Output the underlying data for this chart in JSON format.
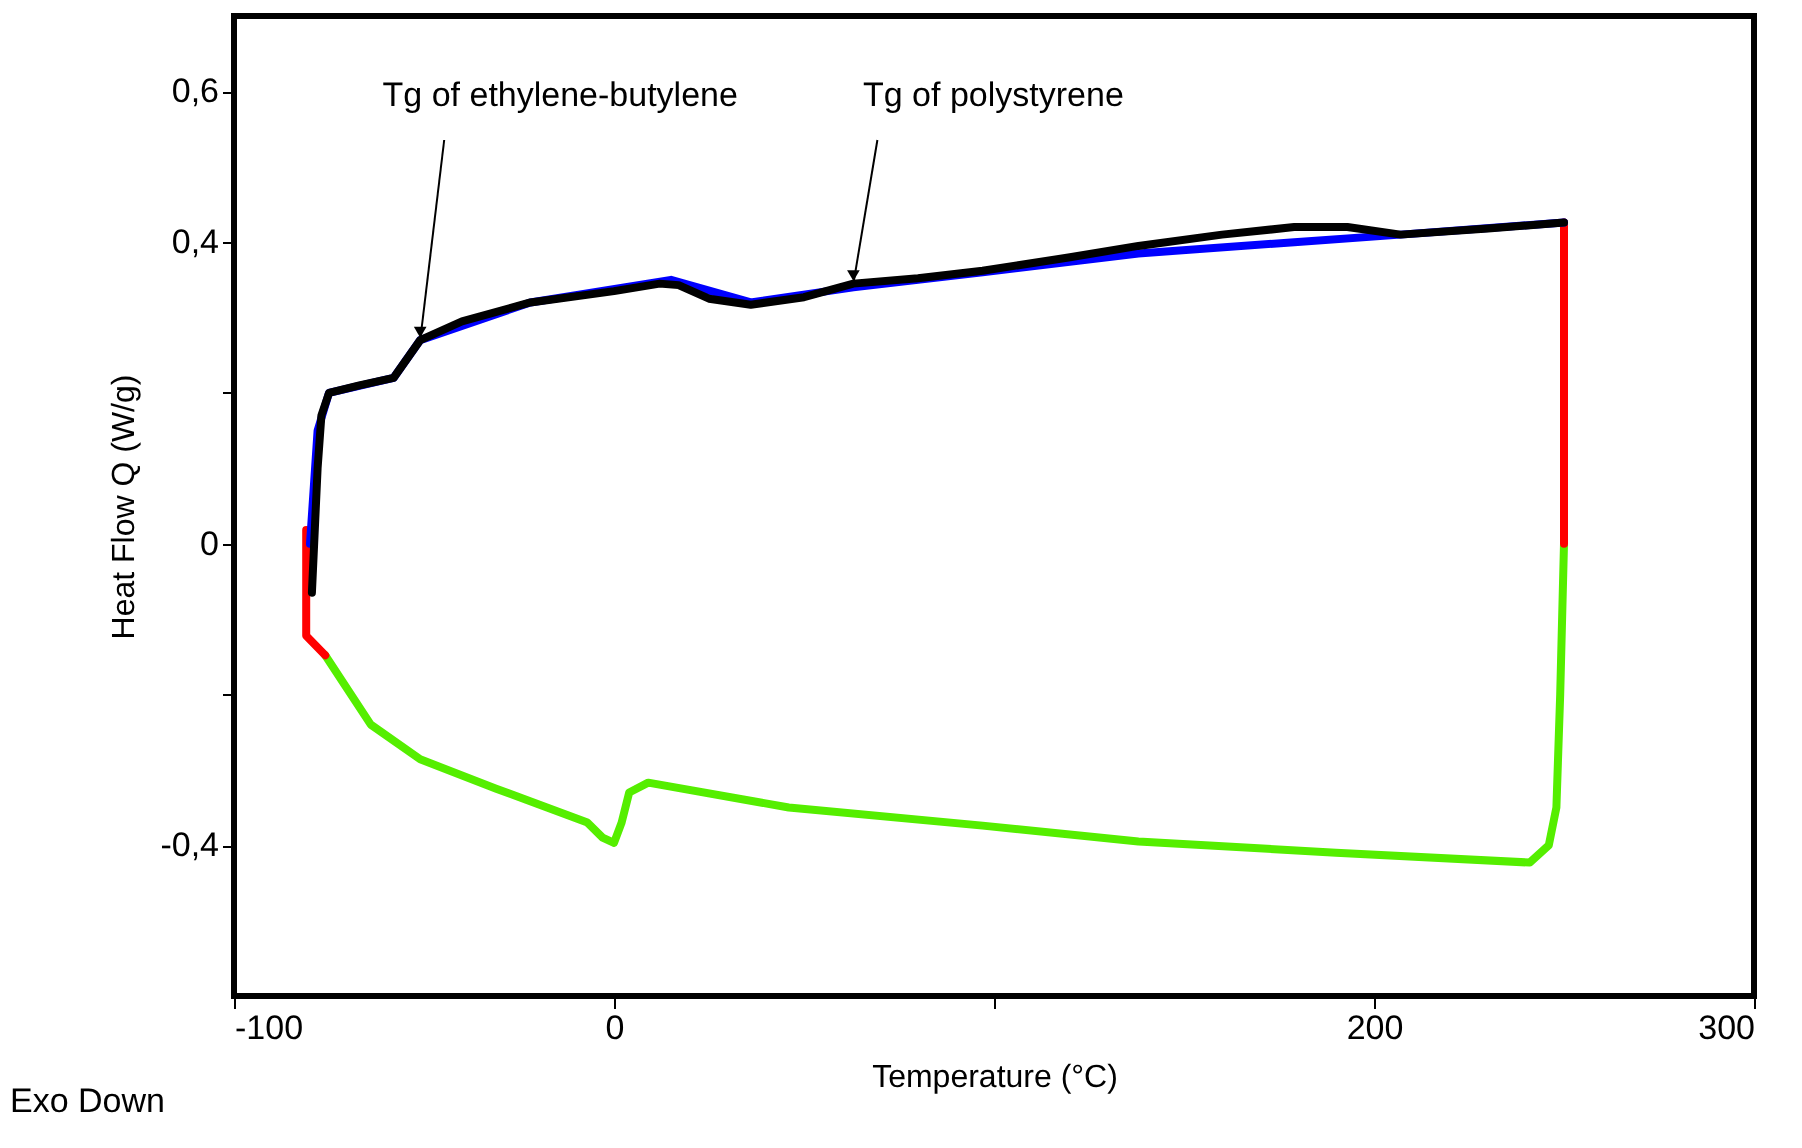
{
  "chart_data": {
    "type": "line",
    "xlabel": "Temperature (°C)",
    "ylabel": "Heat Flow Q (W/g)",
    "xlim": [
      -100,
      300
    ],
    "xticks": [
      -100,
      0,
      {
        "value": 100,
        "label": null
      },
      200,
      300
    ],
    "ylim": [
      -0.6,
      0.7
    ],
    "yticks": [
      {
        "value": -0.4,
        "label": "-0,4"
      },
      {
        "value": -0.2,
        "label": null
      },
      {
        "value": 0,
        "label": "0"
      },
      {
        "value": 0.2,
        "label": null
      },
      {
        "value": 0.4,
        "label": "0,4"
      },
      {
        "value": 0.6,
        "label": "0,6"
      }
    ],
    "grid": false,
    "legend": false,
    "marker": "none",
    "line_style": "solid",
    "series": [
      {
        "color": "#55ee00",
        "x": [
          250,
          249,
          248,
          246,
          241,
          190,
          138,
          97,
          46,
          9,
          4,
          2,
          0,
          -3,
          -7,
          -31,
          -51,
          -64,
          -76
        ],
        "values": [
          0,
          -0.2,
          -0.35,
          -0.4,
          -0.423,
          -0.41,
          -0.395,
          -0.374,
          -0.35,
          -0.317,
          -0.33,
          -0.37,
          -0.397,
          -0.39,
          -0.37,
          -0.325,
          -0.286,
          -0.24,
          -0.148
        ]
      },
      {
        "color": "#ff0000",
        "x": [
          -81,
          -81,
          -76
        ],
        "values": [
          0.018,
          -0.122,
          -0.148
        ]
      },
      {
        "color": "#ff0000",
        "x": [
          250,
          250
        ],
        "values": [
          0.426,
          0
        ]
      },
      {
        "color": "#0000ff",
        "x": [
          -80,
          -78,
          -75,
          -58,
          -51,
          -22,
          15,
          36,
          63,
          97,
          138,
          179,
          207,
          250
        ],
        "values": [
          0.0,
          0.15,
          0.2,
          0.22,
          0.27,
          0.32,
          0.35,
          0.32,
          0.34,
          0.36,
          0.385,
          0.4,
          0.41,
          0.426
        ]
      },
      {
        "color": "#000000",
        "x": [
          -79.5,
          -78,
          -77,
          -75,
          -67,
          -58,
          -51,
          -40,
          -22,
          0,
          12,
          17,
          25,
          36,
          50,
          63,
          80,
          97,
          120,
          138,
          160,
          179,
          193,
          207,
          230,
          250
        ],
        "values": [
          -0.065,
          0.1,
          0.17,
          0.2,
          0.21,
          0.22,
          0.27,
          0.295,
          0.32,
          0.335,
          0.345,
          0.343,
          0.325,
          0.317,
          0.327,
          0.345,
          0.352,
          0.362,
          0.38,
          0.395,
          0.41,
          0.42,
          0.42,
          0.41,
          0.418,
          0.426
        ]
      }
    ],
    "annotations": [
      {
        "text": "Tg of ethylene-butylene",
        "x": -51,
        "y": 0.27
      },
      {
        "text": "Tg of polystyrene",
        "x": 63,
        "y": 0.345
      },
      "Exo Down"
    ]
  }
}
